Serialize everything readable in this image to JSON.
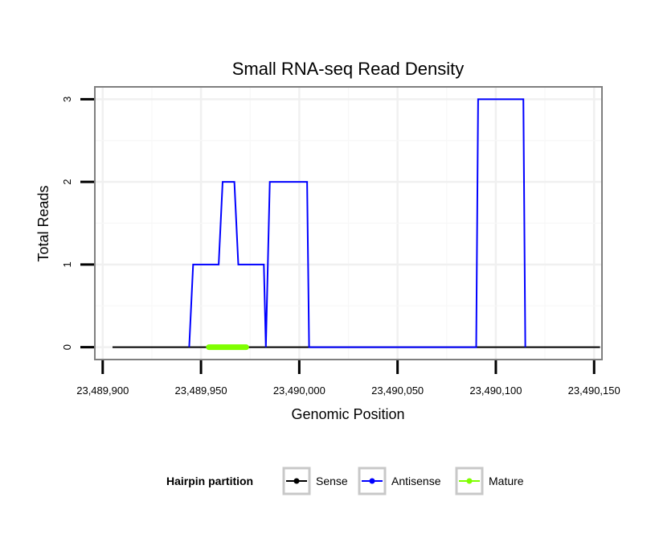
{
  "chart_data": {
    "type": "line",
    "title": "Small RNA-seq Read Density",
    "xlabel": "Genomic Position",
    "ylabel": "Total Reads",
    "xlim": [
      23489896,
      23490154
    ],
    "ylim": [
      -0.15,
      3.15
    ],
    "x_ticks": [
      23489900,
      23489950,
      23490000,
      23490050,
      23490100,
      23490150
    ],
    "x_tick_labels": [
      "23,489,900",
      "23,489,950",
      "23,490,000",
      "23,490,050",
      "23,490,100",
      "23,490,150"
    ],
    "y_ticks": [
      0,
      1,
      2,
      3
    ],
    "y_tick_labels": [
      "0",
      "1",
      "2",
      "3"
    ],
    "grid": true,
    "legend": {
      "title": "Hairpin partition",
      "position": "bottom",
      "entries": [
        {
          "name": "Sense",
          "color": "#000000"
        },
        {
          "name": "Antisense",
          "color": "#0000ff"
        },
        {
          "name": "Mature",
          "color": "#7fff00"
        }
      ]
    },
    "series": [
      {
        "name": "Sense",
        "color": "#000000",
        "x": [
          23489905,
          23490153
        ],
        "y": [
          0,
          0
        ]
      },
      {
        "name": "Antisense",
        "color": "#0000ff",
        "x": [
          23489944,
          23489946,
          23489959,
          23489961,
          23489967,
          23489969,
          23489982,
          23489983,
          23489985,
          23490004,
          23490005,
          23490090,
          23490091,
          23490114,
          23490115
        ],
        "y": [
          0,
          1,
          1,
          2,
          2,
          1,
          1,
          0,
          2,
          2,
          0,
          0,
          3,
          3,
          0
        ]
      },
      {
        "name": "Mature",
        "color": "#7fff00",
        "x": [
          23489954,
          23489973
        ],
        "y": [
          0,
          0
        ]
      }
    ]
  }
}
